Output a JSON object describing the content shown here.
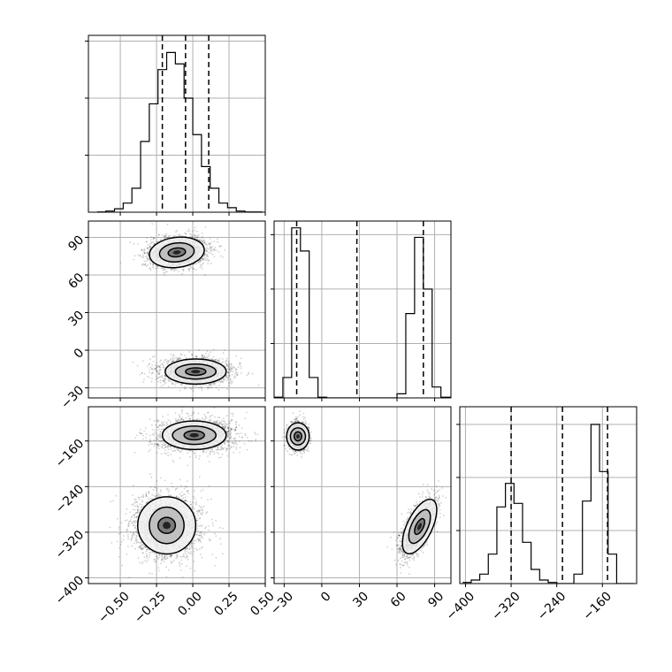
{
  "chart_data": {
    "type": "corner",
    "grid": true,
    "parameters": [
      {
        "index": 0,
        "range": [
          -0.72,
          0.5
        ],
        "ticks": [
          -0.5,
          -0.25,
          0.0,
          0.25,
          0.5
        ],
        "tick_labels": [
          "−0.50",
          "−0.25",
          "0.00",
          "0.25",
          "0.50"
        ]
      },
      {
        "index": 1,
        "range": [
          -38,
          103
        ],
        "ticks": [
          -30,
          0,
          30,
          60,
          90
        ],
        "tick_labels": [
          "−30",
          "0",
          "30",
          "60",
          "90"
        ]
      },
      {
        "index": 2,
        "range": [
          -410,
          -100
        ],
        "ticks": [
          -400,
          -320,
          -240,
          -160
        ],
        "tick_labels": [
          "−400",
          "−320",
          "−240",
          "−160"
        ]
      }
    ],
    "histograms": [
      {
        "param": 0,
        "bin_edges": [
          -0.66,
          -0.6,
          -0.54,
          -0.48,
          -0.42,
          -0.36,
          -0.3,
          -0.24,
          -0.18,
          -0.12,
          -0.06,
          0.0,
          0.06,
          0.12,
          0.18,
          0.24,
          0.3,
          0.36,
          0.42,
          0.48
        ],
        "counts": [
          0.2,
          1,
          3,
          8,
          21,
          62,
          95,
          125,
          140,
          130,
          100,
          68,
          40,
          21,
          8,
          4,
          1,
          0.2,
          0.2
        ],
        "ylim": [
          0,
          155
        ],
        "y_gridlines": [
          0,
          50,
          100,
          150
        ],
        "quantiles": [
          -0.21,
          -0.05,
          0.11
        ]
      },
      {
        "param": 1,
        "bin_edges": [
          -38,
          -31,
          -24,
          -17,
          -10,
          -3,
          4,
          11,
          18,
          25,
          32,
          39,
          46,
          53,
          60,
          67,
          74,
          81,
          88,
          95,
          103
        ],
        "counts": [
          0.5,
          15,
          125,
          108,
          15,
          0.5,
          0,
          0,
          0,
          0,
          0,
          0,
          0,
          0,
          3,
          62,
          118,
          80,
          8,
          0.5
        ],
        "ylim": [
          0,
          130
        ],
        "y_gridlines": [
          0,
          40,
          80,
          120
        ],
        "quantiles": [
          -20,
          28,
          81
        ]
      },
      {
        "param": 2,
        "bin_edges": [
          -405,
          -390,
          -375,
          -360,
          -345,
          -330,
          -315,
          -300,
          -285,
          -270,
          -255,
          -240,
          -225,
          -210,
          -195,
          -180,
          -165,
          -150,
          -135,
          -120,
          -105
        ],
        "counts": [
          1,
          3,
          8,
          25,
          65,
          85,
          68,
          35,
          12,
          3,
          1,
          0,
          0,
          8,
          70,
          135,
          95,
          25,
          0,
          0
        ],
        "ylim": [
          0,
          150
        ],
        "y_gridlines": [
          0,
          45,
          90,
          135
        ],
        "quantiles": [
          -320,
          -230,
          -151
        ]
      }
    ],
    "scatter_panels": [
      {
        "x_param": 0,
        "y_param": 1,
        "clusters": [
          {
            "cx": -0.1,
            "cy": 78,
            "sx": 0.1,
            "sy": 6,
            "n": 2200,
            "rot": -0.12
          },
          {
            "cx": 0.02,
            "cy": -17,
            "sx": 0.12,
            "sy": 5,
            "n": 2200,
            "rot": 0.0
          }
        ],
        "contours": [
          {
            "cx": -0.11,
            "cy": 78,
            "rx": [
              0.06,
              0.12,
              0.19
            ],
            "ry": [
              3.5,
              7.5,
              12
            ],
            "rot": -0.12
          },
          {
            "cx": 0.02,
            "cy": -17,
            "rx": [
              0.07,
              0.14,
              0.21
            ],
            "ry": [
              3,
              6,
              10
            ],
            "rot": 0.0
          }
        ]
      },
      {
        "x_param": 0,
        "y_param": 2,
        "clusters": [
          {
            "cx": 0.02,
            "cy": -150,
            "sx": 0.13,
            "sy": 14,
            "n": 2200,
            "rot": 0.0
          },
          {
            "cx": -0.18,
            "cy": -310,
            "sx": 0.12,
            "sy": 28,
            "n": 2200,
            "rot": 0.0
          }
        ],
        "contours": [
          {
            "cx": 0.01,
            "cy": -150,
            "rx": [
              0.07,
              0.15,
              0.22
            ],
            "ry": [
              8,
              16,
              25
            ],
            "rot": 0.0
          },
          {
            "cx": -0.18,
            "cy": -308,
            "rx": [
              0.06,
              0.12,
              0.2
            ],
            "ry": [
              14,
              32,
              50
            ],
            "rot": 0.0
          }
        ]
      },
      {
        "x_param": 1,
        "y_param": 2,
        "clusters": [
          {
            "cx": -19,
            "cy": -152,
            "sx": 3.5,
            "sy": 11,
            "n": 2200,
            "rot": 0.0
          },
          {
            "cx": 77,
            "cy": -312,
            "sx": 4.5,
            "sy": 26,
            "n": 2200,
            "rot": 0.45
          }
        ],
        "contours": [
          {
            "cx": -19,
            "cy": -152,
            "rx": [
              3,
              6,
              9
            ],
            "ry": [
              8,
              15,
              24
            ],
            "rot": 0.0
          },
          {
            "cx": 78,
            "cy": -310,
            "rx": [
              3,
              6.5,
              10
            ],
            "ry": [
              15,
              32,
              52
            ],
            "rot": 0.45
          }
        ]
      }
    ]
  }
}
